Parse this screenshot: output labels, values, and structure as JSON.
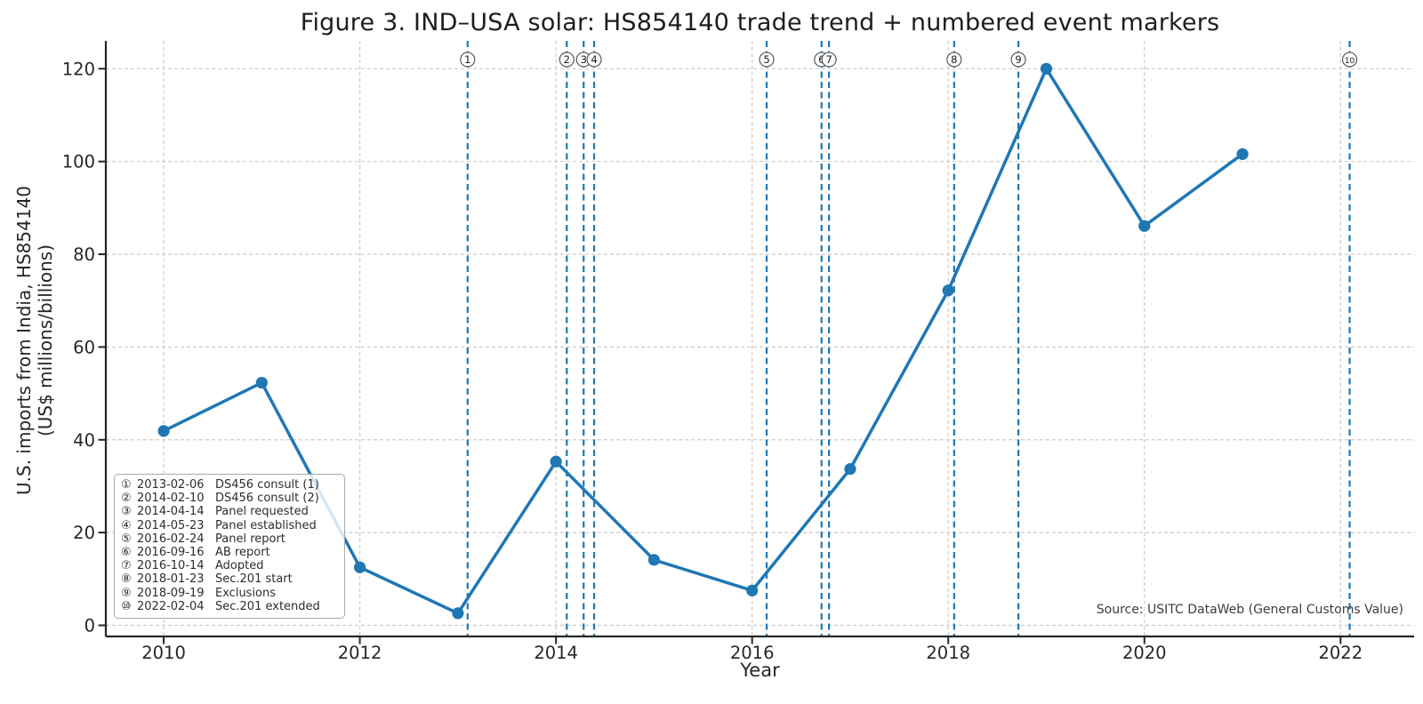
{
  "figure": {
    "title": "Figure 3. IND–USA solar: HS854140 trade trend + numbered event markers",
    "xlabel": "Year",
    "ylabel_line1": "U.S. imports from India, HS854140",
    "ylabel_line2": "(US$ millions/billions)",
    "source_note": "Source: USITC DataWeb (General Customs Value)"
  },
  "chart_data": {
    "type": "line",
    "title": "Figure 3. IND–USA solar: HS854140 trade trend + numbered event markers",
    "xlabel": "Year",
    "ylabel": "U.S. imports from India, HS854140 (US$ millions/billions)",
    "x": [
      2010,
      2011,
      2012,
      2013,
      2014,
      2015,
      2016,
      2017,
      2018,
      2019,
      2020,
      2021
    ],
    "values": [
      41.9,
      52.3,
      12.5,
      2.6,
      35.3,
      14.1,
      7.5,
      33.7,
      72.2,
      120.0,
      86.1,
      101.6
    ],
    "xticks": [
      2010,
      2012,
      2014,
      2016,
      2018,
      2020,
      2022
    ],
    "yticks": [
      0,
      20,
      40,
      60,
      80,
      100,
      120
    ],
    "xlim": [
      2009.41,
      2022.75
    ],
    "ylim": [
      -2.4,
      126.0
    ],
    "grid": true,
    "grid_style": "dashed",
    "legend_position": "lower-left",
    "line_color": "#1f77b4",
    "event_line_color": "#1f77b4",
    "grid_color": "#cbcbcb",
    "axis_color": "#262626",
    "events": [
      {
        "num": "1",
        "glyph": "①",
        "date": "2013-02-06",
        "label": "DS456 consult (1)",
        "year": 2013.099
      },
      {
        "num": "2",
        "glyph": "②",
        "date": "2014-02-10",
        "label": "DS456 consult (2)",
        "year": 2014.11
      },
      {
        "num": "3",
        "glyph": "③",
        "date": "2014-04-14",
        "label": "Panel requested",
        "year": 2014.282
      },
      {
        "num": "4",
        "glyph": "④",
        "date": "2014-05-23",
        "label": "Panel established",
        "year": 2014.389
      },
      {
        "num": "5",
        "glyph": "⑤",
        "date": "2016-02-24",
        "label": "Panel report",
        "year": 2016.148
      },
      {
        "num": "6",
        "glyph": "⑥",
        "date": "2016-09-16",
        "label": "AB report",
        "year": 2016.708
      },
      {
        "num": "7",
        "glyph": "⑦",
        "date": "2016-10-14",
        "label": "Adopted",
        "year": 2016.784
      },
      {
        "num": "8",
        "glyph": "⑧",
        "date": "2018-01-23",
        "label": "Sec.201 start",
        "year": 2018.06
      },
      {
        "num": "9",
        "glyph": "⑨",
        "date": "2018-09-19",
        "label": "Exclusions",
        "year": 2018.715
      },
      {
        "num": "10",
        "glyph": "⑩",
        "date": "2022-02-04",
        "label": "Sec.201 extended",
        "year": 2022.093
      }
    ]
  }
}
